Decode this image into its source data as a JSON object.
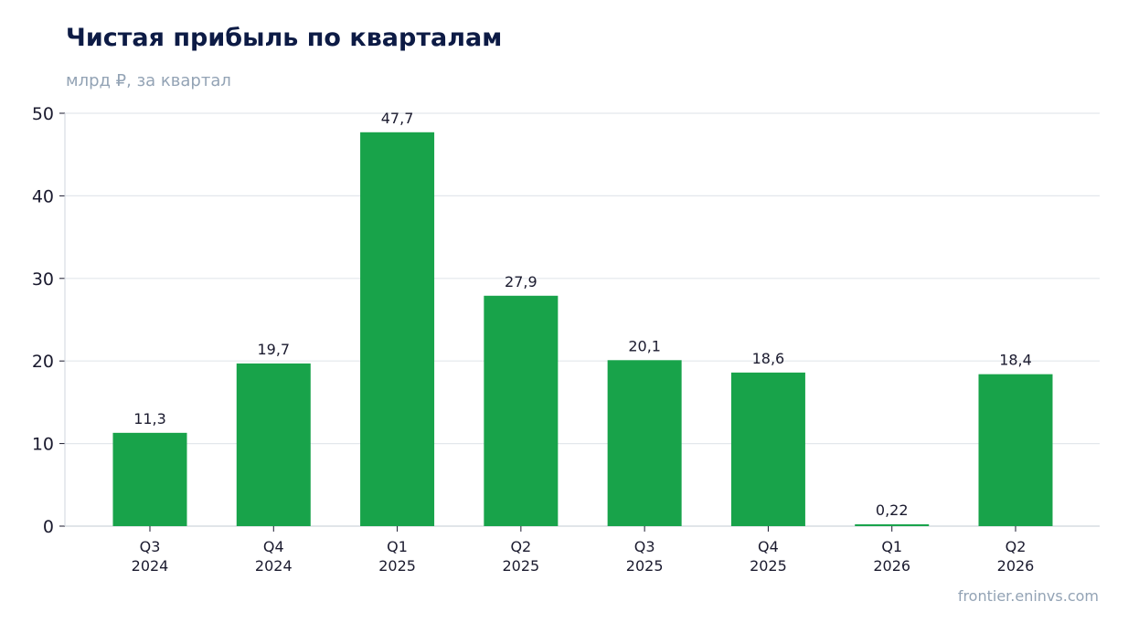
{
  "chart_data": {
    "type": "bar",
    "title": "Чистая прибыль по кварталам",
    "subtitle": "млрд ₽, за квартал",
    "categories": [
      [
        "Q3",
        "2024"
      ],
      [
        "Q4",
        "2024"
      ],
      [
        "Q1",
        "2025"
      ],
      [
        "Q2",
        "2025"
      ],
      [
        "Q3",
        "2025"
      ],
      [
        "Q4",
        "2025"
      ],
      [
        "Q1",
        "2026"
      ],
      [
        "Q2",
        "2026"
      ]
    ],
    "values": [
      11.3,
      19.7,
      47.7,
      27.9,
      20.1,
      18.6,
      0.22,
      18.4
    ],
    "value_labels": [
      "11,3",
      "19,7",
      "47,7",
      "27,9",
      "20,1",
      "18,6",
      "0,22",
      "18,4"
    ],
    "yticks": [
      0,
      10,
      20,
      30,
      40,
      50
    ],
    "ylim": [
      0,
      50
    ],
    "grid": true,
    "bar_color": "#18a34a",
    "source": "frontier.eninvs.com"
  }
}
